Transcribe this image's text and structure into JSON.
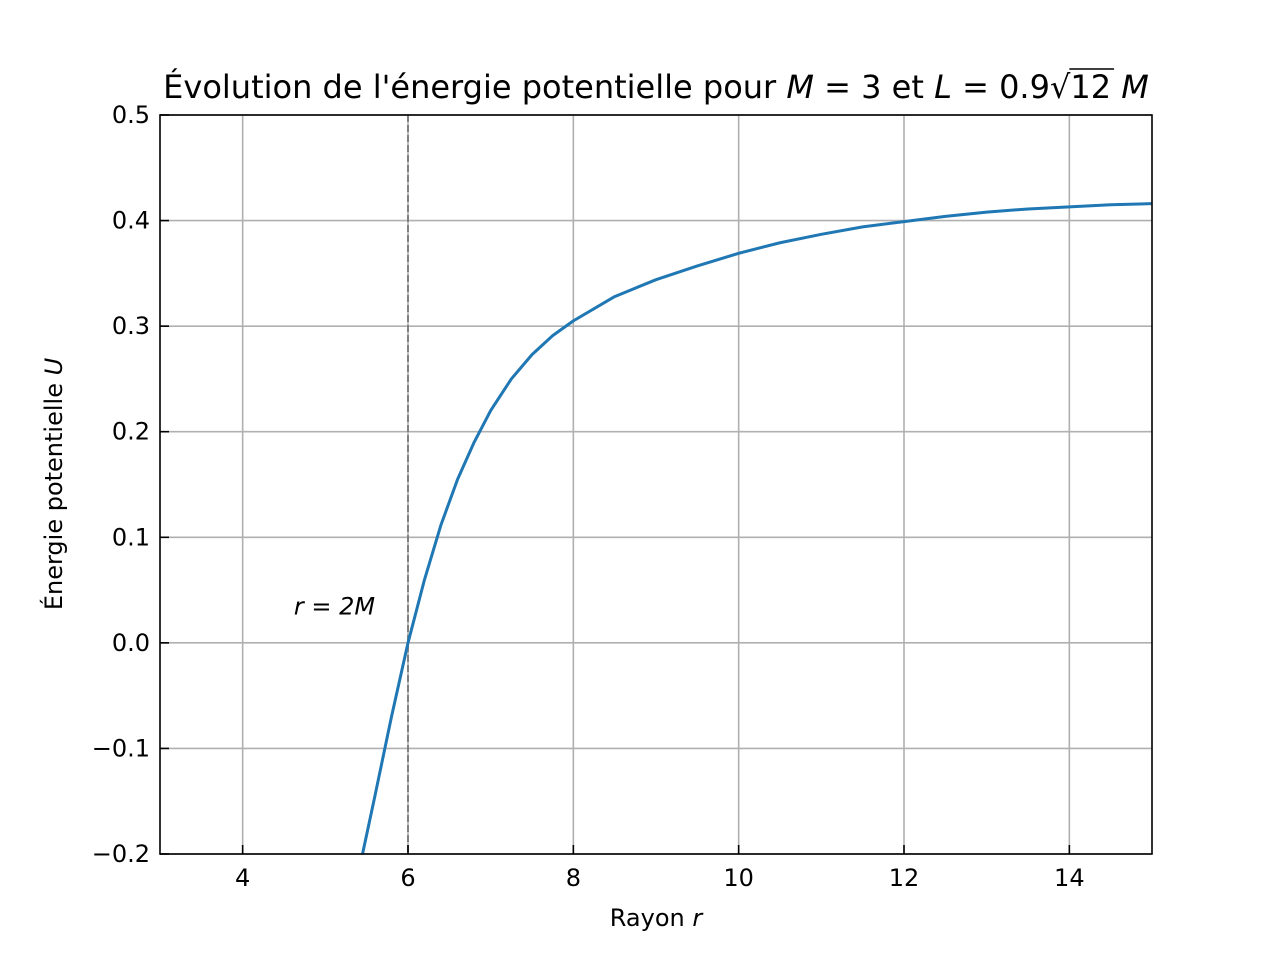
{
  "chart_data": {
    "type": "line",
    "title_parts": {
      "prefix": "Évolution de l'énergie potentielle pour ",
      "m_sym": "M",
      "m_eq": " = 3 et ",
      "l_sym": "L",
      "l_eq": " = 0.9",
      "sqrt_arg": "12",
      "m_sym2": "M"
    },
    "xlabel": {
      "text": "Rayon ",
      "sym": "r"
    },
    "ylabel": {
      "text": "Énergie potentielle ",
      "sym": "U"
    },
    "xlim": [
      3,
      15
    ],
    "ylim": [
      -0.2,
      0.5
    ],
    "xticks": [
      4,
      6,
      8,
      10,
      12,
      14
    ],
    "yticks": [
      -0.2,
      -0.1,
      0.0,
      0.1,
      0.2,
      0.3,
      0.4,
      0.5
    ],
    "ytick_labels": [
      "−0.2",
      "−0.1",
      "0.0",
      "0.1",
      "0.2",
      "0.3",
      "0.4",
      "0.5"
    ],
    "xtick_labels": [
      "4",
      "6",
      "8",
      "10",
      "12",
      "14"
    ],
    "grid": true,
    "series": [
      {
        "color": "#1f77b4",
        "x": [
          5.45,
          5.6,
          5.8,
          6.0,
          6.2,
          6.4,
          6.6,
          6.8,
          7.0,
          7.25,
          7.5,
          7.75,
          8.0,
          8.5,
          9.0,
          9.5,
          10.0,
          10.5,
          11.0,
          11.5,
          12.0,
          12.5,
          13.0,
          13.5,
          14.0,
          14.5,
          15.0
        ],
        "y": [
          -0.2,
          -0.145,
          -0.07,
          0.0,
          0.06,
          0.112,
          0.155,
          0.19,
          0.22,
          0.25,
          0.273,
          0.291,
          0.305,
          0.328,
          0.344,
          0.357,
          0.369,
          0.379,
          0.387,
          0.394,
          0.399,
          0.404,
          0.408,
          0.411,
          0.413,
          0.415,
          0.416
        ]
      }
    ],
    "vline": {
      "x": 6,
      "color": "#808080",
      "style": "dashed"
    },
    "annotation": {
      "text": "r = 2M",
      "x": 4.62,
      "y": 0.027
    }
  }
}
